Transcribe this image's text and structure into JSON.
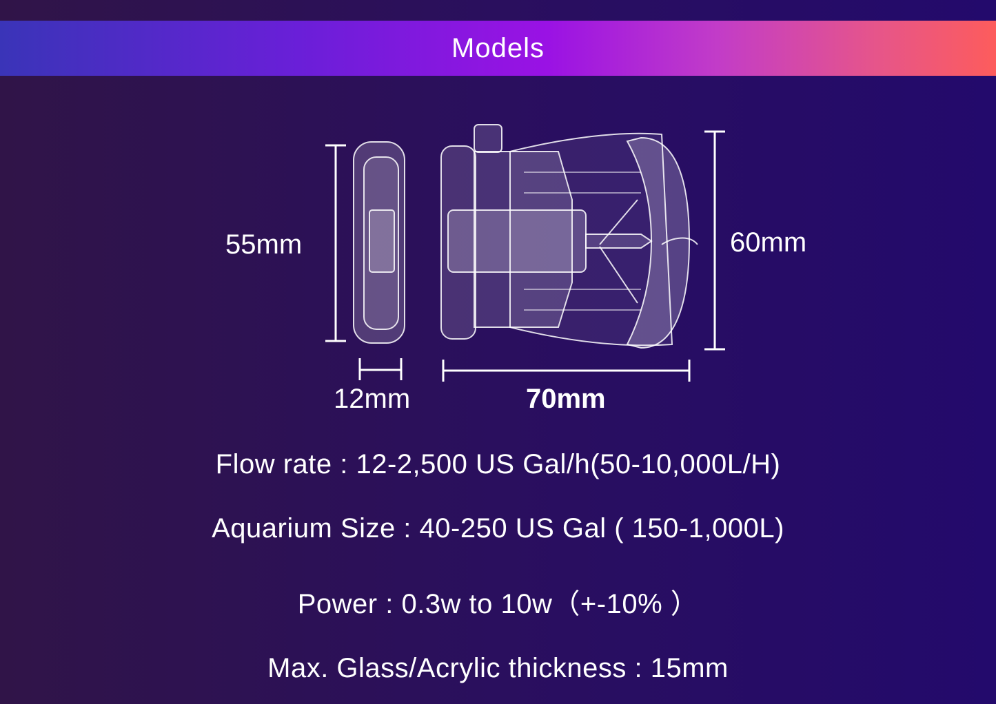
{
  "header": {
    "title": "Models"
  },
  "dimensions": {
    "height_left": "55mm",
    "height_right": "60mm",
    "width_small": "12mm",
    "width_main": "70mm"
  },
  "specs": [
    "Flow rate : 12-2,500 US Gal/h(50-10,000L/H)",
    "Aquarium Size : 40-250 US Gal ( 150-1,000L)",
    "Power : 0.3w to 10w（+-10% ）",
    "Max. Glass/Acrylic thickness : 15mm"
  ],
  "colors": {
    "banner_start": "#3a34b8",
    "banner_mid": "#9a12e4",
    "banner_end": "#fd5c5c",
    "background": "#2a0f5e"
  }
}
